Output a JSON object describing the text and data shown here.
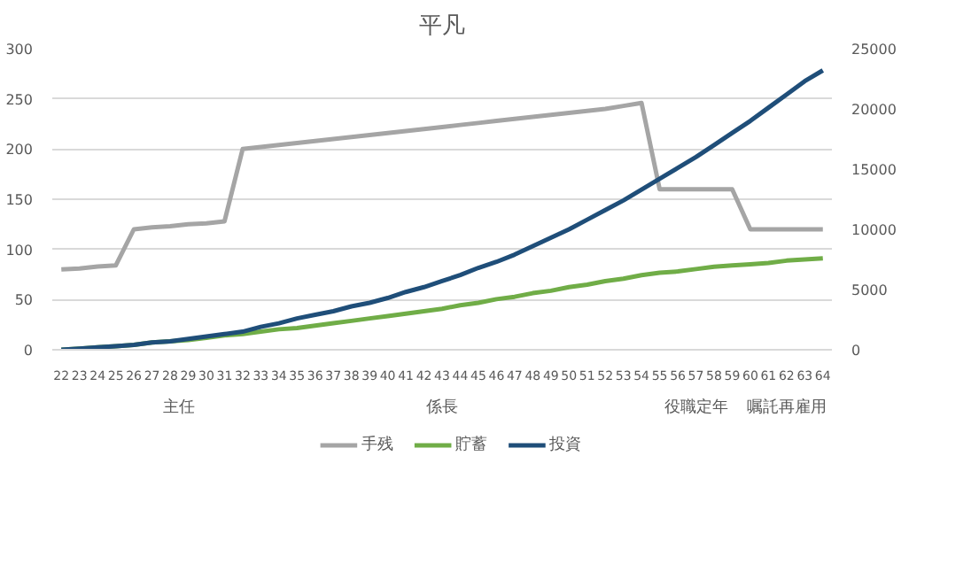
{
  "chart_data": {
    "type": "line",
    "title": "平凡",
    "categories": [
      "22",
      "23",
      "24",
      "25",
      "26",
      "27",
      "28",
      "29",
      "30",
      "31",
      "32",
      "33",
      "34",
      "35",
      "36",
      "37",
      "38",
      "39",
      "40",
      "41",
      "42",
      "43",
      "44",
      "45",
      "46",
      "47",
      "48",
      "49",
      "50",
      "51",
      "52",
      "53",
      "54",
      "55",
      "56",
      "57",
      "58",
      "59",
      "60",
      "61",
      "62",
      "63",
      "64"
    ],
    "series": [
      {
        "name": "手残",
        "color": "#a5a5a5",
        "values": [
          80,
          81,
          83,
          84,
          120,
          122,
          123,
          125,
          126,
          128,
          200,
          202,
          204,
          206,
          208,
          210,
          212,
          214,
          216,
          218,
          220,
          222,
          224,
          226,
          228,
          230,
          232,
          234,
          236,
          238,
          240,
          243,
          246,
          160,
          160,
          160,
          160,
          160,
          120,
          120,
          120,
          120,
          120
        ]
      },
      {
        "name": "貯蓄",
        "color": "#70ad47",
        "axis": "y2",
        "values": [
          0,
          100,
          200,
          300,
          400,
          600,
          700,
          800,
          1000,
          1200,
          1300,
          1500,
          1700,
          1800,
          2000,
          2200,
          2400,
          2600,
          2800,
          3000,
          3200,
          3400,
          3700,
          3900,
          4200,
          4400,
          4700,
          4900,
          5200,
          5400,
          5700,
          5900,
          6200,
          6400,
          6500,
          6700,
          6900,
          7000,
          7100,
          7200,
          7400,
          7500,
          7600
        ]
      },
      {
        "name": "投資",
        "color": "#1f4e79",
        "axis": "y2",
        "values": [
          0,
          100,
          200,
          300,
          400,
          600,
          700,
          900,
          1100,
          1300,
          1500,
          1900,
          2200,
          2600,
          2900,
          3200,
          3600,
          3900,
          4300,
          4800,
          5200,
          5700,
          6200,
          6800,
          7300,
          7900,
          8600,
          9300,
          10000,
          10800,
          11600,
          12400,
          13300,
          14200,
          15100,
          16000,
          17000,
          18000,
          19000,
          20100,
          21200,
          22300,
          23200
        ]
      }
    ],
    "annotations": [
      "主任",
      "係長",
      "役職定年",
      "嘱託再雇用"
    ],
    "ylim": [
      0,
      300
    ],
    "yticks": [
      0,
      50,
      100,
      150,
      200,
      250,
      300
    ],
    "y2lim": [
      0,
      25000
    ],
    "y2ticks": [
      0,
      5000,
      10000,
      15000,
      20000,
      25000
    ],
    "grid": "y",
    "legend": "bottom"
  }
}
